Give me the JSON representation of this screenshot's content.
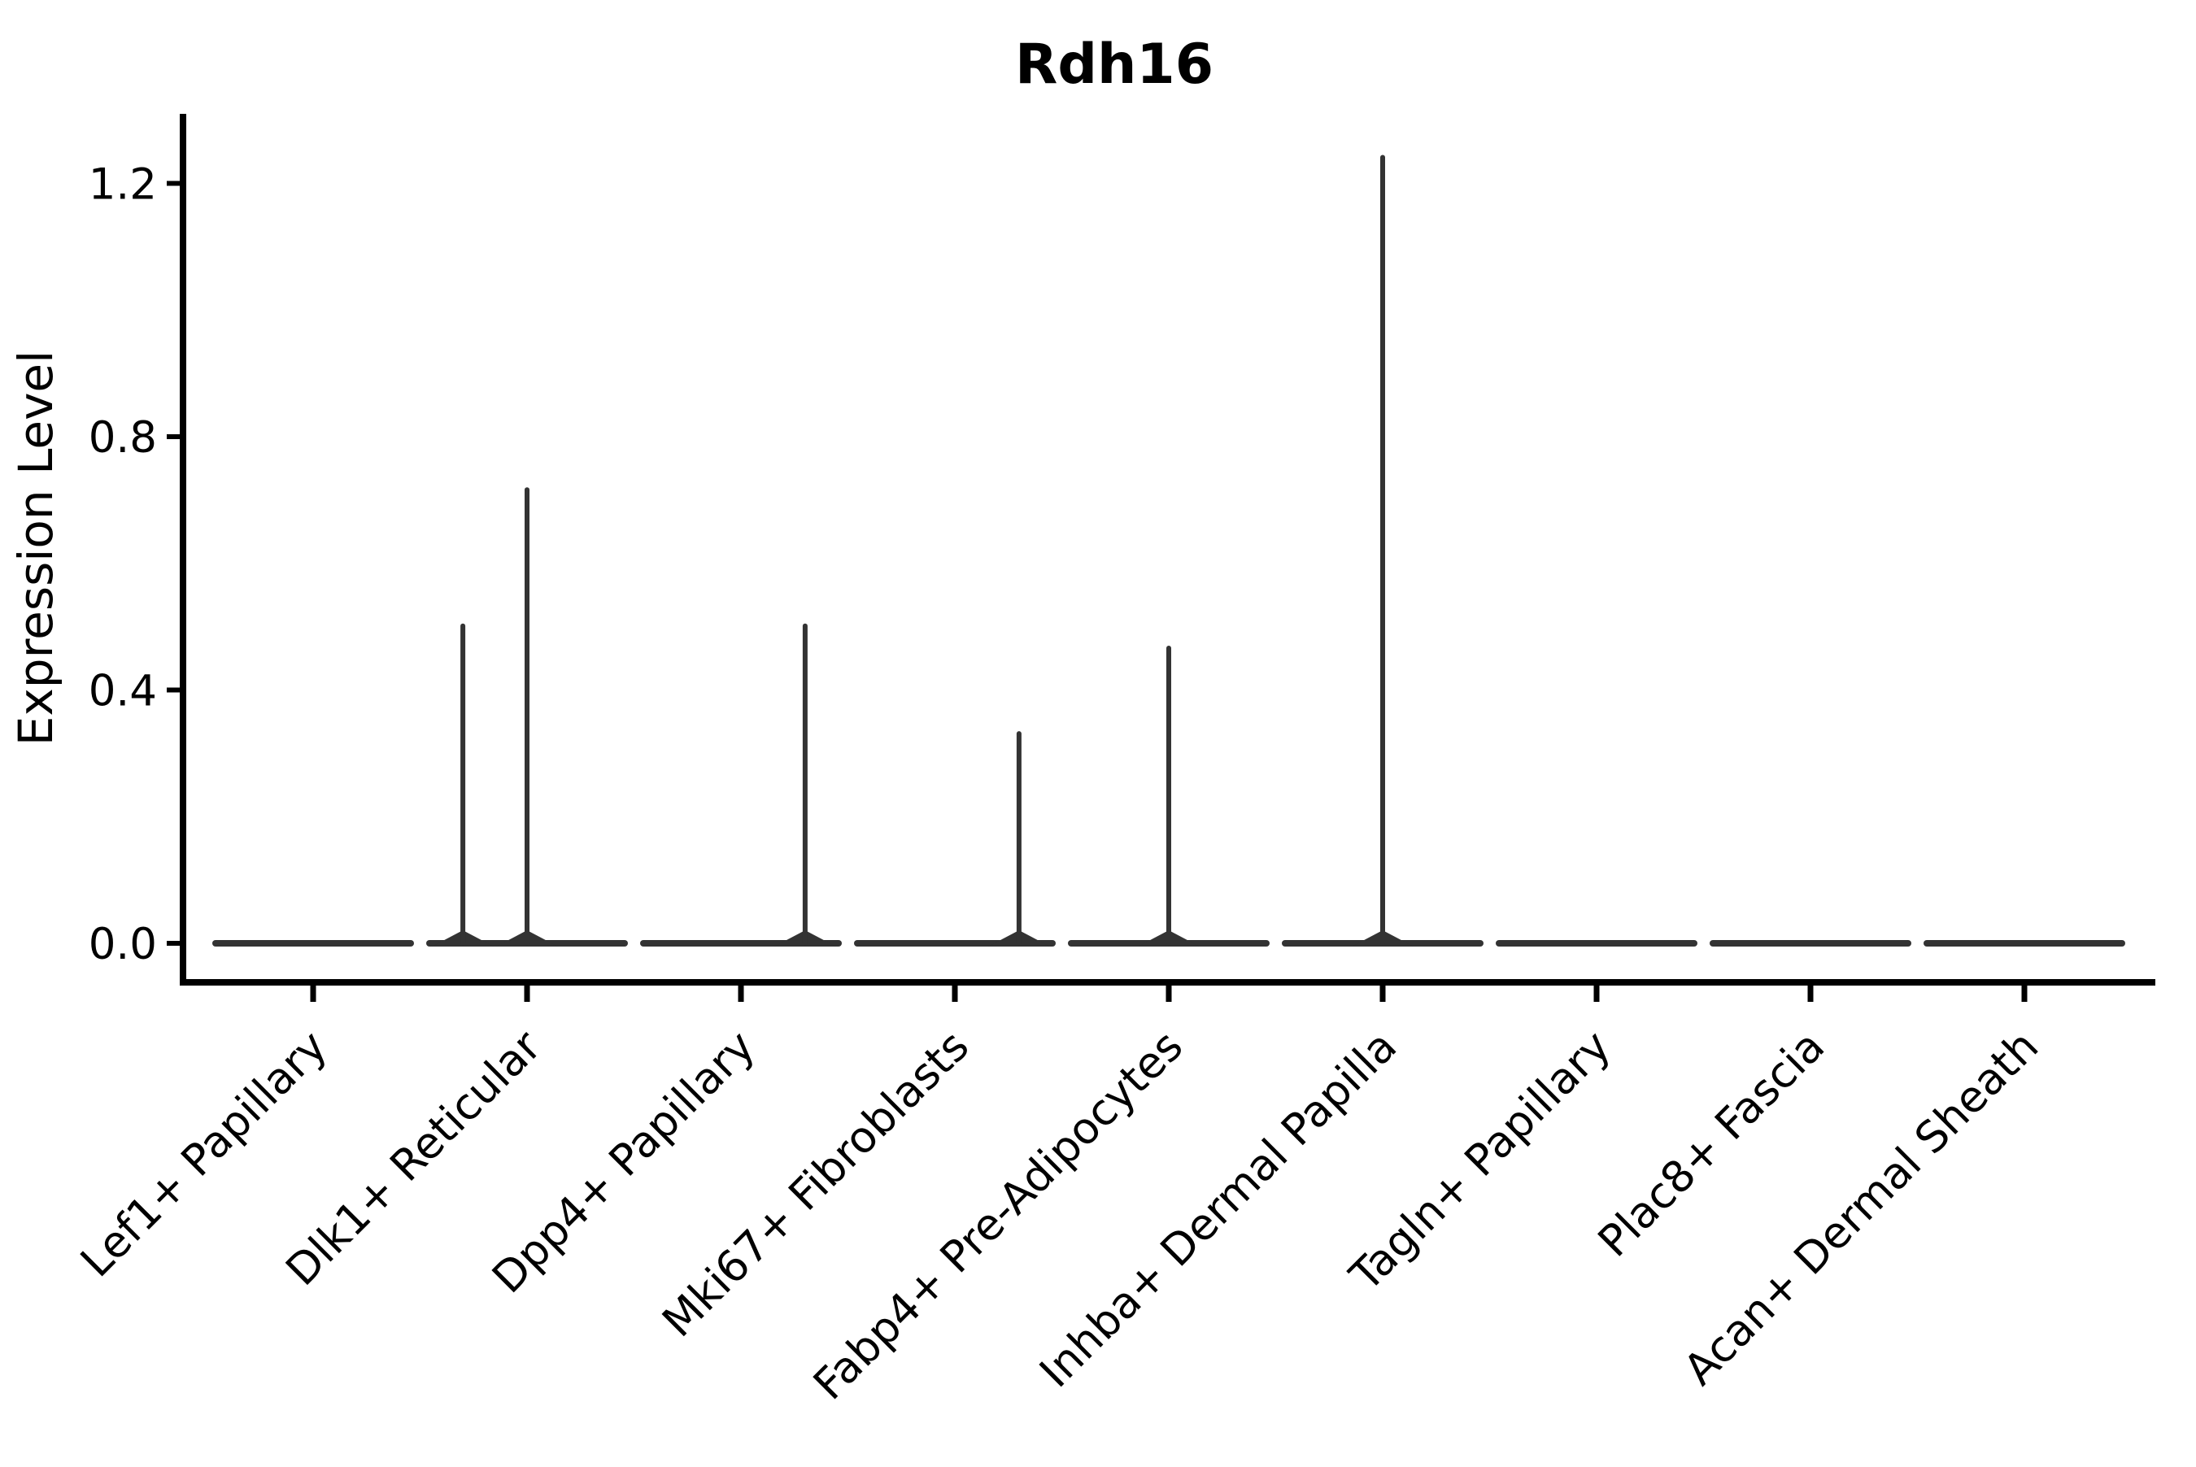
{
  "chart_data": {
    "type": "violin",
    "title": "Rdh16",
    "ylabel": "Expression Level",
    "xlabel": "",
    "categories": [
      "Lef1+ Papillary",
      "Dlk1+ Reticular",
      "Dpp4+ Papillary",
      "Mki67+ Fibroblasts",
      "Fabp4+ Pre-Adipocytes",
      "Inhba+ Dermal Papilla",
      "Tagln+ Papillary",
      "Plac8+ Fascia",
      "Acan+ Dermal Sheath"
    ],
    "yticks": [
      0.0,
      0.4,
      0.8,
      1.2
    ],
    "ylim": [
      -0.06,
      1.32
    ],
    "grid": false,
    "legend": "none",
    "baseline_value": 0.0,
    "violins": [
      {
        "category": "Lef1+ Papillary",
        "max": 0.0,
        "spikes": []
      },
      {
        "category": "Dlk1+ Reticular",
        "max": 0.72,
        "spikes": [
          {
            "offset": -0.3,
            "value": 0.505
          },
          {
            "offset": 0.0,
            "value": 0.72
          }
        ]
      },
      {
        "category": "Dpp4+ Papillary",
        "max": 0.505,
        "spikes": [
          {
            "offset": 0.3,
            "value": 0.505
          }
        ]
      },
      {
        "category": "Mki67+ Fibroblasts",
        "max": 0.335,
        "spikes": [
          {
            "offset": 0.3,
            "value": 0.335
          }
        ]
      },
      {
        "category": "Fabp4+ Pre-Adipocytes",
        "max": 0.47,
        "spikes": [
          {
            "offset": 0.0,
            "value": 0.47
          }
        ]
      },
      {
        "category": "Inhba+ Dermal Papilla",
        "max": 1.245,
        "spikes": [
          {
            "offset": 0.0,
            "value": 1.245
          }
        ]
      },
      {
        "category": "Tagln+ Papillary",
        "max": 0.0,
        "spikes": []
      },
      {
        "category": "Plac8+ Fascia",
        "max": 0.0,
        "spikes": []
      },
      {
        "category": "Acan+ Dermal Sheath",
        "max": 0.0,
        "spikes": []
      }
    ],
    "colors": {
      "violin": "#333333",
      "axis": "#000000",
      "text": "#000000",
      "background": "#ffffff"
    }
  }
}
